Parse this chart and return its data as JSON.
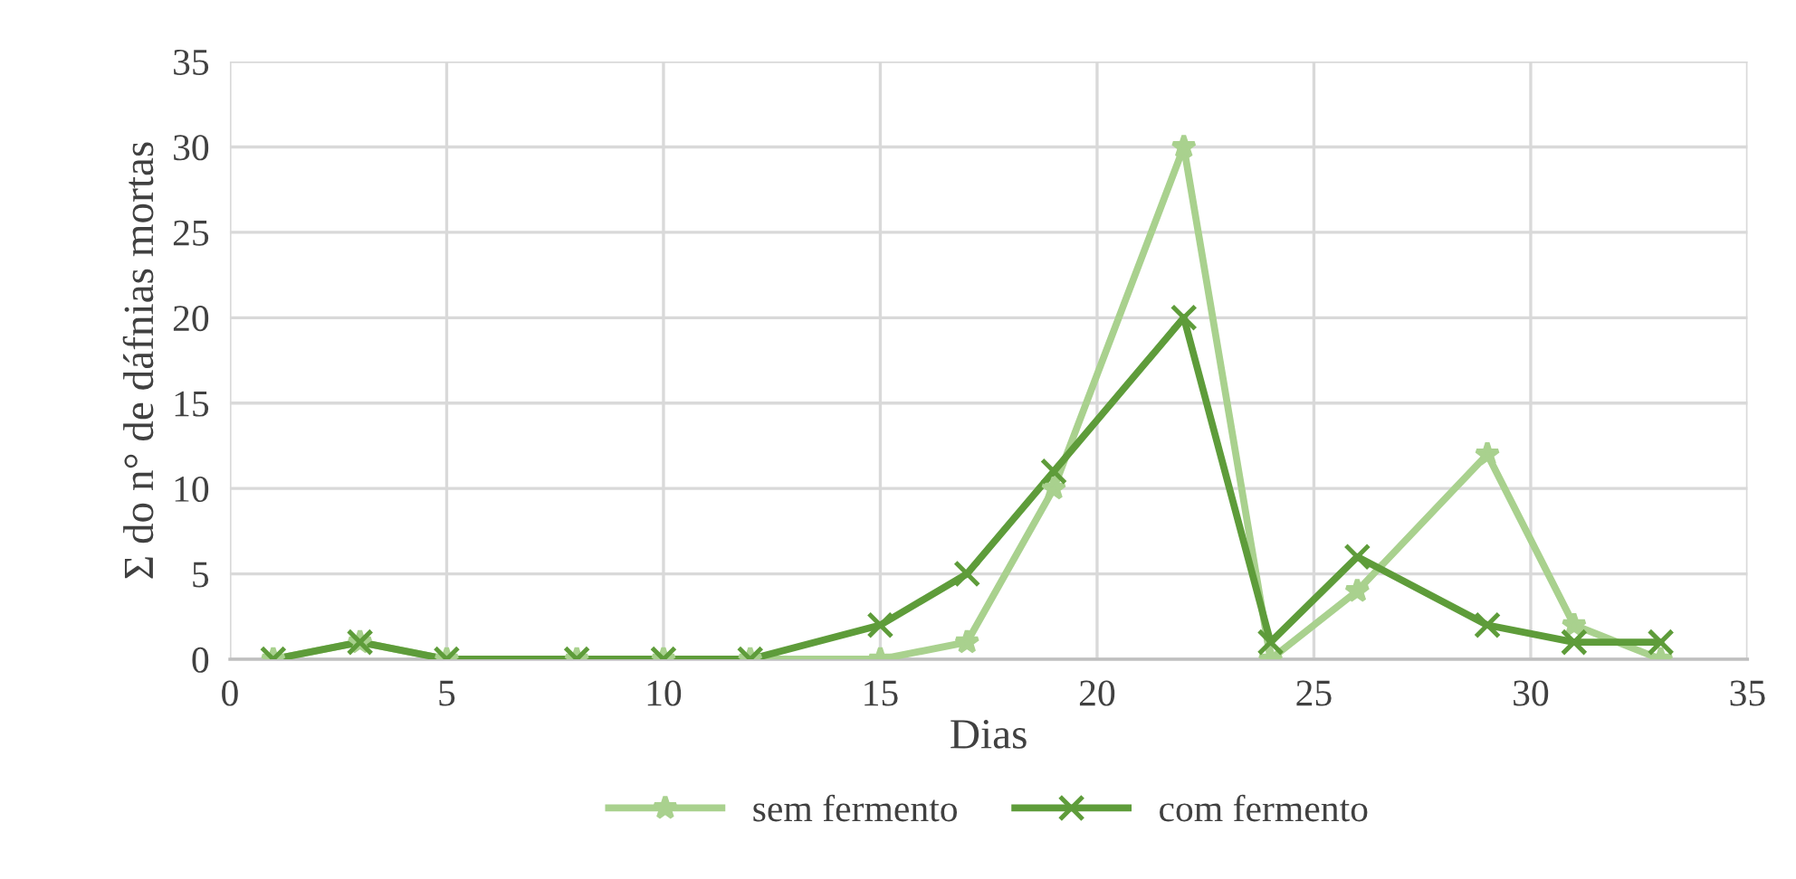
{
  "chart_data": {
    "type": "line",
    "xlabel": "Dias",
    "ylabel": "Σ do n° de dáfnias mortas",
    "x": [
      1,
      3,
      5,
      8,
      10,
      12,
      15,
      17,
      19,
      22,
      24,
      26,
      29,
      31,
      33
    ],
    "series": [
      {
        "name": "sem fermento",
        "color": "#a9d18e",
        "marker": "star",
        "values": [
          0,
          1,
          0,
          0,
          0,
          0,
          0,
          1,
          10,
          30,
          0,
          4,
          12,
          2,
          0
        ]
      },
      {
        "name": "com fermento",
        "color": "#5e9c3a",
        "marker": "cross",
        "values": [
          0,
          1,
          0,
          0,
          0,
          0,
          2,
          5,
          11,
          20,
          1,
          6,
          2,
          1,
          1
        ]
      }
    ],
    "xlim": [
      0,
      35
    ],
    "xticks": [
      0,
      5,
      10,
      15,
      20,
      25,
      30,
      35
    ],
    "ylim": [
      0,
      35
    ],
    "yticks": [
      0,
      5,
      10,
      15,
      20,
      25,
      30,
      35
    ],
    "grid": true,
    "legend": "bottom",
    "line_style": "solid"
  }
}
